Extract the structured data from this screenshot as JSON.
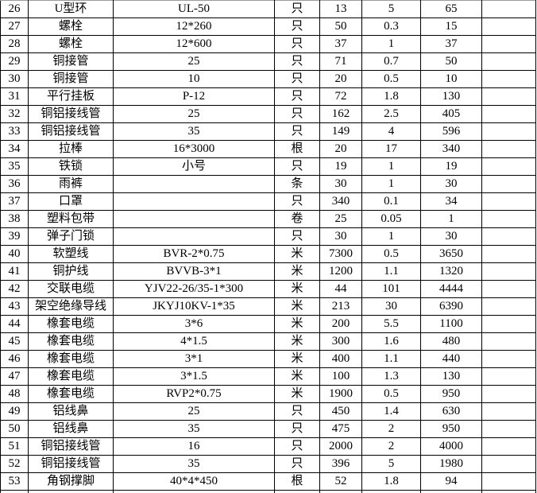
{
  "colors": {
    "background": "#ffffff",
    "grid_line": "#000000",
    "top_edge_line": "#9b9b9b",
    "text": "#000000"
  },
  "table": {
    "column_keys": [
      "row_no",
      "item_name",
      "spec",
      "unit",
      "quantity",
      "unit_price",
      "total",
      "blank"
    ],
    "rows": [
      {
        "row_no": "26",
        "item_name": "U型环",
        "spec": "UL-50",
        "unit": "只",
        "quantity": "13",
        "unit_price": "5",
        "total": "65",
        "blank": ""
      },
      {
        "row_no": "27",
        "item_name": "螺栓",
        "spec": "12*260",
        "unit": "只",
        "quantity": "50",
        "unit_price": "0.3",
        "total": "15",
        "blank": ""
      },
      {
        "row_no": "28",
        "item_name": "螺栓",
        "spec": "12*600",
        "unit": "只",
        "quantity": "37",
        "unit_price": "1",
        "total": "37",
        "blank": ""
      },
      {
        "row_no": "29",
        "item_name": "铜接管",
        "spec": "25",
        "unit": "只",
        "quantity": "71",
        "unit_price": "0.7",
        "total": "50",
        "blank": ""
      },
      {
        "row_no": "30",
        "item_name": "铜接管",
        "spec": "10",
        "unit": "只",
        "quantity": "20",
        "unit_price": "0.5",
        "total": "10",
        "blank": ""
      },
      {
        "row_no": "31",
        "item_name": "平行挂板",
        "spec": "P-12",
        "unit": "只",
        "quantity": "72",
        "unit_price": "1.8",
        "total": "130",
        "blank": ""
      },
      {
        "row_no": "32",
        "item_name": "铜铝接线管",
        "spec": "25",
        "unit": "只",
        "quantity": "162",
        "unit_price": "2.5",
        "total": "405",
        "blank": ""
      },
      {
        "row_no": "33",
        "item_name": "铜铝接线管",
        "spec": "35",
        "unit": "只",
        "quantity": "149",
        "unit_price": "4",
        "total": "596",
        "blank": ""
      },
      {
        "row_no": "34",
        "item_name": "拉棒",
        "spec": "16*3000",
        "unit": "根",
        "quantity": "20",
        "unit_price": "17",
        "total": "340",
        "blank": ""
      },
      {
        "row_no": "35",
        "item_name": "铁锁",
        "spec": "小号",
        "unit": "只",
        "quantity": "19",
        "unit_price": "1",
        "total": "19",
        "blank": ""
      },
      {
        "row_no": "36",
        "item_name": "雨裤",
        "spec": "",
        "unit": "条",
        "quantity": "30",
        "unit_price": "1",
        "total": "30",
        "blank": ""
      },
      {
        "row_no": "37",
        "item_name": "口罩",
        "spec": "",
        "unit": "只",
        "quantity": "340",
        "unit_price": "0.1",
        "total": "34",
        "blank": ""
      },
      {
        "row_no": "38",
        "item_name": "塑料包带",
        "spec": "",
        "unit": "卷",
        "quantity": "25",
        "unit_price": "0.05",
        "total": "1",
        "blank": ""
      },
      {
        "row_no": "39",
        "item_name": "弹子门锁",
        "spec": "",
        "unit": "只",
        "quantity": "30",
        "unit_price": "1",
        "total": "30",
        "blank": ""
      },
      {
        "row_no": "40",
        "item_name": "软塑线",
        "spec": "BVR-2*0.75",
        "unit": "米",
        "quantity": "7300",
        "unit_price": "0.5",
        "total": "3650",
        "blank": ""
      },
      {
        "row_no": "41",
        "item_name": "铜护线",
        "spec": "BVVB-3*1",
        "unit": "米",
        "quantity": "1200",
        "unit_price": "1.1",
        "total": "1320",
        "blank": ""
      },
      {
        "row_no": "42",
        "item_name": "交联电缆",
        "spec": "YJV22-26/35-1*300",
        "unit": "米",
        "quantity": "44",
        "unit_price": "101",
        "total": "4444",
        "blank": ""
      },
      {
        "row_no": "43",
        "item_name": "架空绝缘导线",
        "spec": "JKYJ10KV-1*35",
        "unit": "米",
        "quantity": "213",
        "unit_price": "30",
        "total": "6390",
        "blank": ""
      },
      {
        "row_no": "44",
        "item_name": "橡套电缆",
        "spec": "3*6",
        "unit": "米",
        "quantity": "200",
        "unit_price": "5.5",
        "total": "1100",
        "blank": ""
      },
      {
        "row_no": "45",
        "item_name": "橡套电缆",
        "spec": "4*1.5",
        "unit": "米",
        "quantity": "300",
        "unit_price": "1.6",
        "total": "480",
        "blank": ""
      },
      {
        "row_no": "46",
        "item_name": "橡套电缆",
        "spec": "3*1",
        "unit": "米",
        "quantity": "400",
        "unit_price": "1.1",
        "total": "440",
        "blank": ""
      },
      {
        "row_no": "47",
        "item_name": "橡套电缆",
        "spec": "3*1.5",
        "unit": "米",
        "quantity": "100",
        "unit_price": "1.3",
        "total": "130",
        "blank": ""
      },
      {
        "row_no": "48",
        "item_name": "橡套电缆",
        "spec": "RVP2*0.75",
        "unit": "米",
        "quantity": "1900",
        "unit_price": "0.5",
        "total": "950",
        "blank": ""
      },
      {
        "row_no": "49",
        "item_name": "铝线鼻",
        "spec": "25",
        "unit": "只",
        "quantity": "450",
        "unit_price": "1.4",
        "total": "630",
        "blank": ""
      },
      {
        "row_no": "50",
        "item_name": "铝线鼻",
        "spec": "35",
        "unit": "只",
        "quantity": "475",
        "unit_price": "2",
        "total": "950",
        "blank": ""
      },
      {
        "row_no": "51",
        "item_name": "铜铝接线管",
        "spec": "16",
        "unit": "只",
        "quantity": "2000",
        "unit_price": "2",
        "total": "4000",
        "blank": ""
      },
      {
        "row_no": "52",
        "item_name": "铜铝接线管",
        "spec": "35",
        "unit": "只",
        "quantity": "396",
        "unit_price": "5",
        "total": "1980",
        "blank": ""
      },
      {
        "row_no": "53",
        "item_name": "角钢撑脚",
        "spec": "40*4*450",
        "unit": "根",
        "quantity": "52",
        "unit_price": "1.8",
        "total": "94",
        "blank": ""
      }
    ],
    "partial_bottom_row": {
      "visible": true,
      "cells": [
        "",
        "",
        "",
        "",
        "",
        "",
        "",
        ""
      ]
    }
  }
}
